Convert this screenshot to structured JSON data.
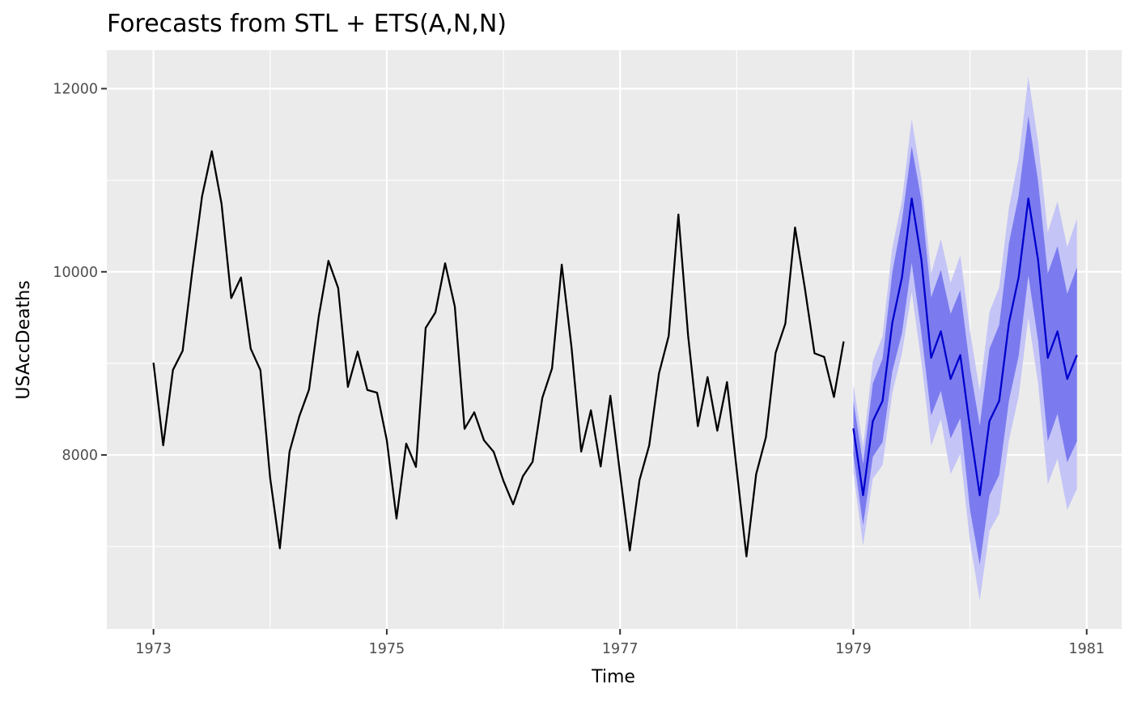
{
  "chart_data": {
    "type": "line",
    "title": "Forecasts from STL +  ETS(A,N,N)",
    "xlabel": "Time",
    "ylabel": "USAccDeaths",
    "x_ticks": [
      "1973",
      "1975",
      "1977",
      "1979",
      "1981"
    ],
    "x_tick_values": [
      1973,
      1975,
      1977,
      1979,
      1981
    ],
    "y_ticks": [
      "8000",
      "10000",
      "12000"
    ],
    "y_tick_values": [
      8000,
      10000,
      12000
    ],
    "xlim": [
      1972.6,
      1981.3
    ],
    "ylim": [
      6100,
      12420
    ],
    "grid": true,
    "background": "#ebebeb",
    "colors": {
      "observed": "#000000",
      "forecast": "#0000cc",
      "interval_80": "#7b7bef",
      "interval_95": "#c4c4f7"
    },
    "observed": {
      "start": [
        1973,
        1
      ],
      "frequency": 12,
      "values": [
        9007,
        8106,
        8928,
        9137,
        10017,
        10826,
        11317,
        10744,
        9713,
        9938,
        9161,
        8927,
        7750,
        6981,
        8038,
        8422,
        8714,
        9512,
        10120,
        9823,
        8743,
        9129,
        8710,
        8680,
        8162,
        7306,
        8124,
        7870,
        9387,
        9556,
        10093,
        9620,
        8285,
        8466,
        8160,
        8034,
        7717,
        7461,
        7767,
        7925,
        8623,
        8945,
        10078,
        9179,
        8037,
        8488,
        7874,
        8647,
        7792,
        6957,
        7726,
        8106,
        8890,
        9299,
        10625,
        9302,
        8314,
        8850,
        8265,
        8796,
        7836,
        6892,
        7791,
        8192,
        9115,
        9434,
        10484,
        9827,
        9110,
        9070,
        8633,
        9240
      ]
    },
    "forecast": {
      "start": [
        1979,
        1
      ],
      "frequency": 12,
      "mean": [
        8290,
        7560,
        8370,
        8590,
        9440,
        9940,
        10800,
        10130,
        9060,
        9350,
        8830,
        9090,
        8290,
        7560,
        8370,
        8590,
        9440,
        9940,
        10800,
        10130,
        9060,
        9350,
        8830,
        9090
      ],
      "lo80": [
        8000,
        7230,
        7980,
        8140,
        8910,
        9330,
        10100,
        9330,
        8430,
        8700,
        8180,
        8400,
        7400,
        6800,
        7560,
        7780,
        8590,
        9080,
        9960,
        9250,
        8150,
        8450,
        7920,
        8150
      ],
      "hi80": [
        8590,
        7900,
        8780,
        9050,
        9990,
        10560,
        11370,
        10780,
        9720,
        10020,
        9540,
        9800,
        8950,
        8320,
        9160,
        9420,
        10310,
        10830,
        11700,
        10990,
        9980,
        10280,
        9760,
        10050
      ],
      "lo95": [
        7810,
        7010,
        7740,
        7890,
        8670,
        9110,
        9780,
        9010,
        8100,
        8390,
        7790,
        8010,
        7050,
        6410,
        7170,
        7360,
        8160,
        8640,
        9500,
        8780,
        7680,
        7960,
        7400,
        7630
      ],
      "hi95": [
        8770,
        8090,
        9020,
        9300,
        10260,
        10780,
        11670,
        11010,
        9980,
        10360,
        9880,
        10180,
        9350,
        8700,
        9560,
        9830,
        10700,
        11230,
        12130,
        11420,
        10430,
        10770,
        10270,
        10580
      ]
    }
  }
}
